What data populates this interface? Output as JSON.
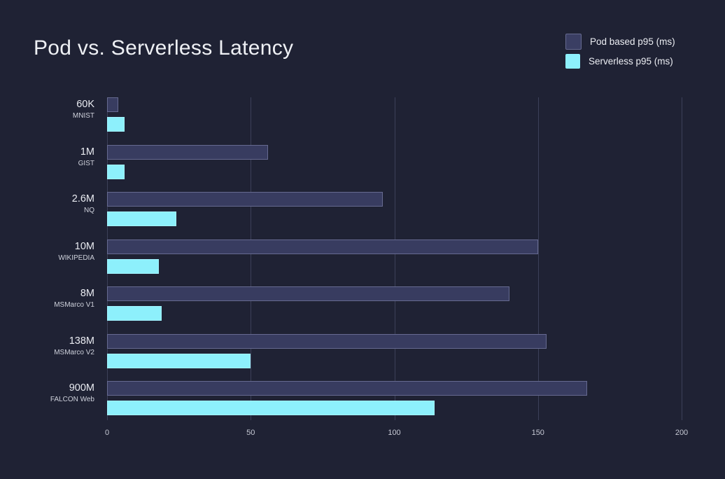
{
  "title": "Pod vs. Serverless Latency",
  "legend": {
    "items": [
      {
        "label": "Pod based p95 (ms)",
        "color": "#3a3e63"
      },
      {
        "label": "Serverless p95 (ms)",
        "color": "#8df0fc"
      }
    ]
  },
  "chart_data": {
    "type": "bar",
    "orientation": "horizontal",
    "title": "Pod vs. Serverless Latency",
    "categories": [
      "60K",
      "1M",
      "2.6M",
      "10M",
      "8M",
      "138M",
      "900M"
    ],
    "category_sublabels": [
      "MNIST",
      "GIST",
      "NQ",
      "WIKIPEDIA",
      "MSMarco V1",
      "MSMarco V2",
      "FALCON Web"
    ],
    "series": [
      {
        "name": "Pod based p95 (ms)",
        "color": "#3a3e63",
        "values": [
          4,
          56,
          96,
          150,
          140,
          153,
          167
        ]
      },
      {
        "name": "Serverless p95 (ms)",
        "color": "#8df0fc",
        "values": [
          6,
          6,
          24,
          18,
          19,
          50,
          114
        ]
      }
    ],
    "xlim": [
      0,
      200
    ],
    "xticks": [
      0,
      50,
      100,
      150,
      200
    ],
    "grid": true,
    "legend_position": "top-right"
  },
  "colors": {
    "background": "#1f2234",
    "gridline": "#3c4059",
    "pod_fill": "#383c60",
    "pod_border": "#666a90",
    "serverless_fill": "#8df0fc",
    "serverless_border": "#a2f3ff",
    "title_text": "#eef0f4",
    "label_text": "#e9ebf1",
    "sublabel_text": "#ced1db",
    "tick_text": "#c6c9d4"
  }
}
